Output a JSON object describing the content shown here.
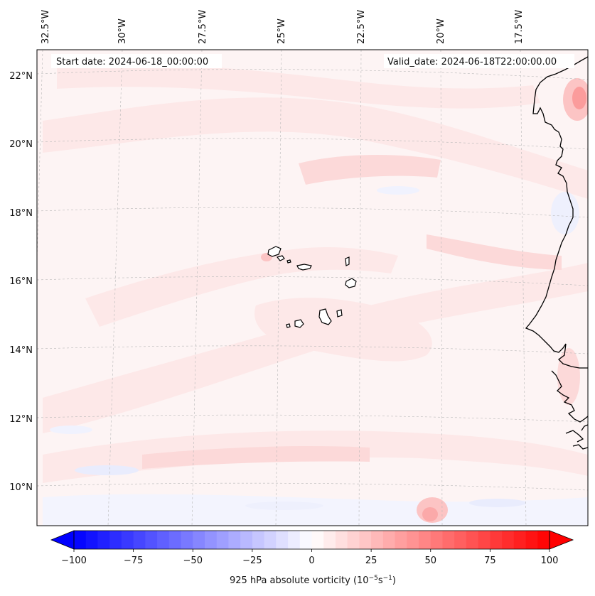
{
  "header": {
    "start_date": "Start date: 2024-06-18_00:00:00",
    "valid_date": "Valid_date: 2024-06-18T22:00:00.00"
  },
  "longitude_labels": [
    "32.5°W",
    "30°W",
    "27.5°W",
    "25°W",
    "22.5°W",
    "20°W",
    "17.5°W"
  ],
  "latitude_labels": [
    "22°N",
    "20°N",
    "18°N",
    "16°N",
    "14°N",
    "12°N",
    "10°N"
  ],
  "colorbar": {
    "label": "925 hPa absolute vorticity (10",
    "label_exp1": "−5",
    "label_mid": "s",
    "label_exp2": "−1",
    "label_end": ")",
    "ticks": [
      "−100",
      "−75",
      "−50",
      "−25",
      "0",
      "25",
      "50",
      "75",
      "100"
    ],
    "min": -100,
    "max": 100,
    "step": 5,
    "negative_color": "#0000ff",
    "positive_color": "#ff0000"
  },
  "colors": {
    "background_field": "#fdf4f4",
    "band_light": "#fde8e8",
    "band_mid": "#fcd9d9",
    "band_strong": "#fb9c9c",
    "blue_tint": "#e9ecfd",
    "coastline": "#000000",
    "gridline": "#b8b8b8"
  }
}
